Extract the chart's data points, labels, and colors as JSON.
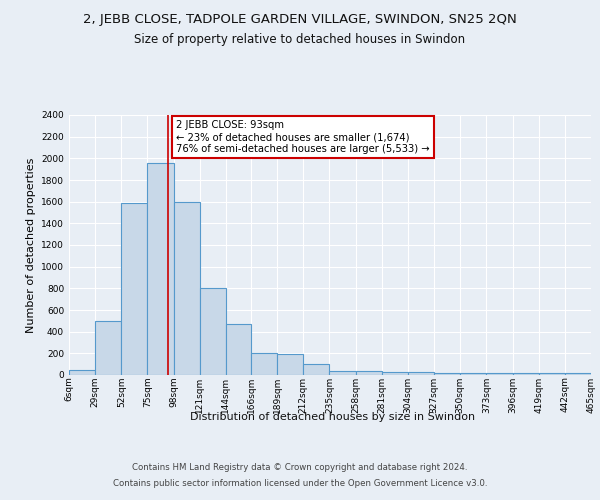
{
  "title_line1": "2, JEBB CLOSE, TADPOLE GARDEN VILLAGE, SWINDON, SN25 2QN",
  "title_line2": "Size of property relative to detached houses in Swindon",
  "xlabel": "Distribution of detached houses by size in Swindon",
  "ylabel": "Number of detached properties",
  "bin_labels": [
    "6sqm",
    "29sqm",
    "52sqm",
    "75sqm",
    "98sqm",
    "121sqm",
    "144sqm",
    "166sqm",
    "189sqm",
    "212sqm",
    "235sqm",
    "258sqm",
    "281sqm",
    "304sqm",
    "327sqm",
    "350sqm",
    "373sqm",
    "396sqm",
    "419sqm",
    "442sqm",
    "465sqm"
  ],
  "bin_edges": [
    6,
    29,
    52,
    75,
    98,
    121,
    144,
    166,
    189,
    212,
    235,
    258,
    281,
    304,
    327,
    350,
    373,
    396,
    419,
    442,
    465
  ],
  "bar_heights": [
    50,
    500,
    1590,
    1960,
    1600,
    800,
    475,
    200,
    195,
    100,
    40,
    40,
    30,
    30,
    20,
    20,
    20,
    20,
    20,
    20
  ],
  "bar_color": "#c8d8e8",
  "bar_edge_color": "#5599cc",
  "red_line_x": 93,
  "annotation_text": "2 JEBB CLOSE: 93sqm\n← 23% of detached houses are smaller (1,674)\n76% of semi-detached houses are larger (5,533) →",
  "annotation_box_color": "#ffffff",
  "annotation_box_edge": "#cc0000",
  "ylim": [
    0,
    2400
  ],
  "yticks": [
    0,
    200,
    400,
    600,
    800,
    1000,
    1200,
    1400,
    1600,
    1800,
    2000,
    2200,
    2400
  ],
  "background_color": "#e8eef5",
  "plot_bg_color": "#e8eef5",
  "grid_color": "#ffffff",
  "footer_line1": "Contains HM Land Registry data © Crown copyright and database right 2024.",
  "footer_line2": "Contains public sector information licensed under the Open Government Licence v3.0.",
  "title_fontsize": 9.5,
  "subtitle_fontsize": 8.5,
  "axis_label_fontsize": 8,
  "tick_fontsize": 6.5,
  "red_line_color": "#cc0000",
  "annotation_fontsize": 7.2
}
